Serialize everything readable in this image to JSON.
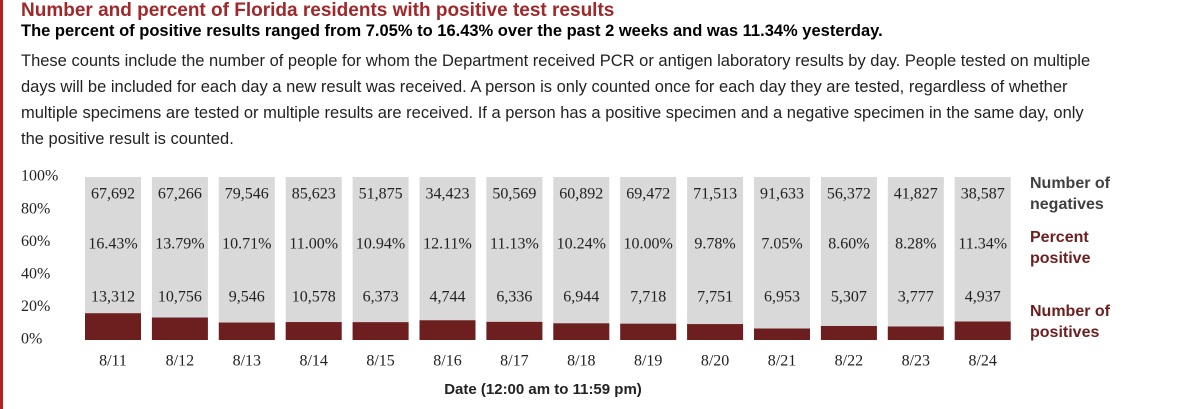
{
  "chart_data": {
    "type": "stacked-percent-bar",
    "title": "Number and percent of Florida residents with positive test results",
    "subtitle": "The percent of positive results ranged from 7.05% to 16.43% over the past 2 weeks and was 11.34% yesterday.",
    "description": "These counts include the number of people for whom the Department received PCR or antigen laboratory results by day. People tested on multiple days will be included for each day a new result was received. A person is only counted once for each day they are tested, regardless of whether multiple specimens are tested or multiple results are received. If a person has a positive specimen and a negative specimen in the same day, only the positive result is counted.",
    "x_label": "Date (12:00 am to 11:59 pm)",
    "categories": [
      "8/11",
      "8/12",
      "8/13",
      "8/14",
      "8/15",
      "8/16",
      "8/17",
      "8/18",
      "8/19",
      "8/20",
      "8/21",
      "8/22",
      "8/23",
      "8/24"
    ],
    "series": [
      {
        "name": "Number of negatives",
        "color": "#d9d9d9",
        "values": [
          67692,
          67266,
          79546,
          85623,
          51875,
          34423,
          50569,
          60892,
          69472,
          71513,
          91633,
          56372,
          41827,
          38587
        ],
        "value_labels": [
          "67,692",
          "67,266",
          "79,546",
          "85,623",
          "51,875",
          "34,423",
          "50,569",
          "60,892",
          "69,472",
          "71,513",
          "91,633",
          "56,372",
          "41,827",
          "38,587"
        ]
      },
      {
        "name": "Percent positive",
        "color": "#6d1f1f",
        "values": [
          16.43,
          13.79,
          10.71,
          11.0,
          10.94,
          12.11,
          11.13,
          10.24,
          10.0,
          9.78,
          7.05,
          8.6,
          8.28,
          11.34
        ],
        "value_labels": [
          "16.43%",
          "13.79%",
          "10.71%",
          "11.00%",
          "10.94%",
          "12.11%",
          "11.13%",
          "10.24%",
          "10.00%",
          "9.78%",
          "7.05%",
          "8.60%",
          "8.28%",
          "11.34%"
        ]
      },
      {
        "name": "Number of positives",
        "values": [
          13312,
          10756,
          9546,
          10578,
          6373,
          4744,
          6336,
          6944,
          7718,
          7751,
          6953,
          5307,
          3777,
          4937
        ],
        "value_labels": [
          "13,312",
          "10,756",
          "9,546",
          "10,578",
          "6,373",
          "4,744",
          "6,336",
          "6,944",
          "7,718",
          "7,751",
          "6,953",
          "5,307",
          "3,777",
          "4,937"
        ]
      }
    ],
    "ylim": [
      0,
      100
    ],
    "yticks": [
      {
        "value": 0,
        "label": "0%"
      },
      {
        "value": 20,
        "label": "20%"
      },
      {
        "value": 40,
        "label": "40%"
      },
      {
        "value": 60,
        "label": "60%"
      },
      {
        "value": 80,
        "label": "80%"
      },
      {
        "value": 100,
        "label": "100%"
      }
    ]
  }
}
